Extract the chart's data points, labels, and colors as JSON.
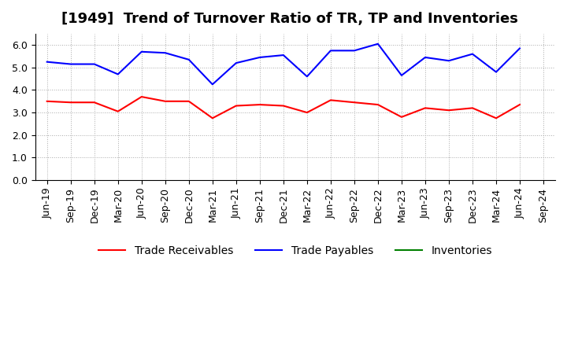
{
  "title": "[1949]  Trend of Turnover Ratio of TR, TP and Inventories",
  "x_labels": [
    "Jun-19",
    "Sep-19",
    "Dec-19",
    "Mar-20",
    "Jun-20",
    "Sep-20",
    "Dec-20",
    "Mar-21",
    "Jun-21",
    "Sep-21",
    "Dec-21",
    "Mar-22",
    "Jun-22",
    "Sep-22",
    "Dec-22",
    "Mar-23",
    "Jun-23",
    "Sep-23",
    "Dec-23",
    "Mar-24",
    "Jun-24",
    "Sep-24"
  ],
  "trade_receivables": [
    3.5,
    3.45,
    3.45,
    3.05,
    3.7,
    3.5,
    3.5,
    2.75,
    3.3,
    3.35,
    3.3,
    3.0,
    3.55,
    3.45,
    3.35,
    2.8,
    3.2,
    3.1,
    3.2,
    2.75,
    3.35,
    null
  ],
  "trade_payables": [
    5.25,
    5.15,
    5.15,
    4.7,
    5.7,
    5.65,
    5.35,
    4.25,
    5.2,
    5.45,
    5.55,
    4.6,
    5.75,
    5.75,
    6.05,
    4.65,
    5.45,
    5.3,
    5.6,
    4.8,
    5.85,
    null
  ],
  "inventories": [
    null,
    null,
    null,
    null,
    null,
    null,
    null,
    null,
    null,
    null,
    null,
    null,
    null,
    null,
    null,
    null,
    null,
    null,
    null,
    null,
    null,
    null
  ],
  "ylim": [
    0.0,
    6.5
  ],
  "yticks": [
    0.0,
    1.0,
    2.0,
    3.0,
    4.0,
    5.0,
    6.0
  ],
  "legend_labels": [
    "Trade Receivables",
    "Trade Payables",
    "Inventories"
  ],
  "legend_colors": [
    "#ff0000",
    "#0000ff",
    "#008000"
  ],
  "line_colors": [
    "#ff0000",
    "#0000ff",
    "#008000"
  ],
  "background_color": "#ffffff",
  "grid_color": "#aaaaaa",
  "title_fontsize": 13,
  "tick_fontsize": 9,
  "legend_fontsize": 10
}
